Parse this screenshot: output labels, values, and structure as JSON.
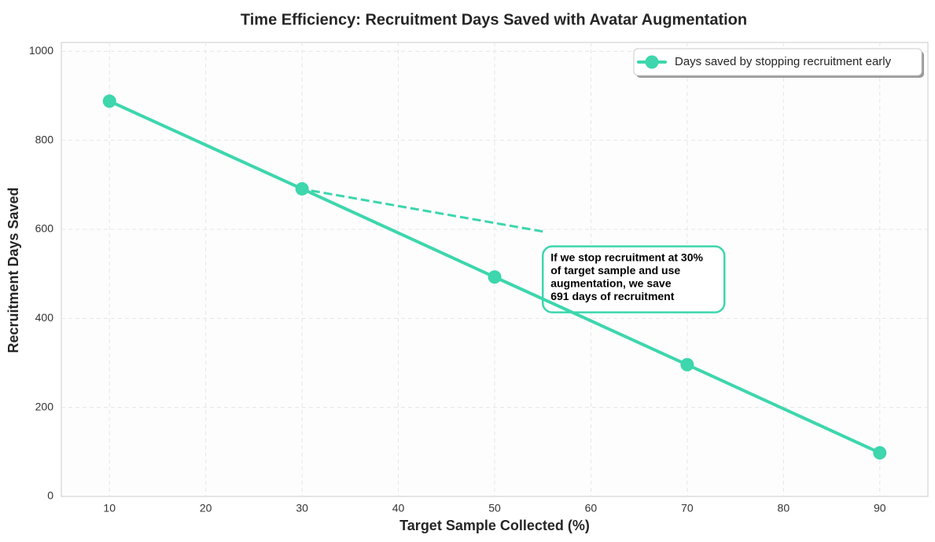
{
  "chart_data": {
    "type": "line",
    "title": "Time Efficiency: Recruitment Days Saved with Avatar Augmentation",
    "xlabel": "Target Sample Collected (%)",
    "ylabel": "Recruitment Days Saved",
    "xlim": [
      5,
      95
    ],
    "ylim": [
      0,
      1020
    ],
    "xticks": [
      10,
      20,
      30,
      40,
      50,
      60,
      70,
      80,
      90
    ],
    "yticks": [
      0,
      200,
      400,
      600,
      800,
      1000
    ],
    "grid": true,
    "legend_position": "top-right",
    "series": [
      {
        "name": "Days saved by stopping recruitment early",
        "color": "#3dd6ad",
        "x": [
          10,
          30,
          50,
          70,
          90
        ],
        "y": [
          888,
          691,
          493,
          296,
          98
        ]
      }
    ],
    "annotation": {
      "lines": [
        "If we stop recruitment at 30%",
        "of target sample and use",
        "augmentation, we save",
        "691 days of recruitment"
      ],
      "target": {
        "x": 30,
        "y": 691
      },
      "text_anchor": {
        "x": 55,
        "y": 560
      }
    }
  },
  "colors": {
    "accent": "#3dd6ad",
    "plot_background": "#fdfdfd",
    "grid": "#e6e6e6",
    "spine": "#cccccc"
  }
}
